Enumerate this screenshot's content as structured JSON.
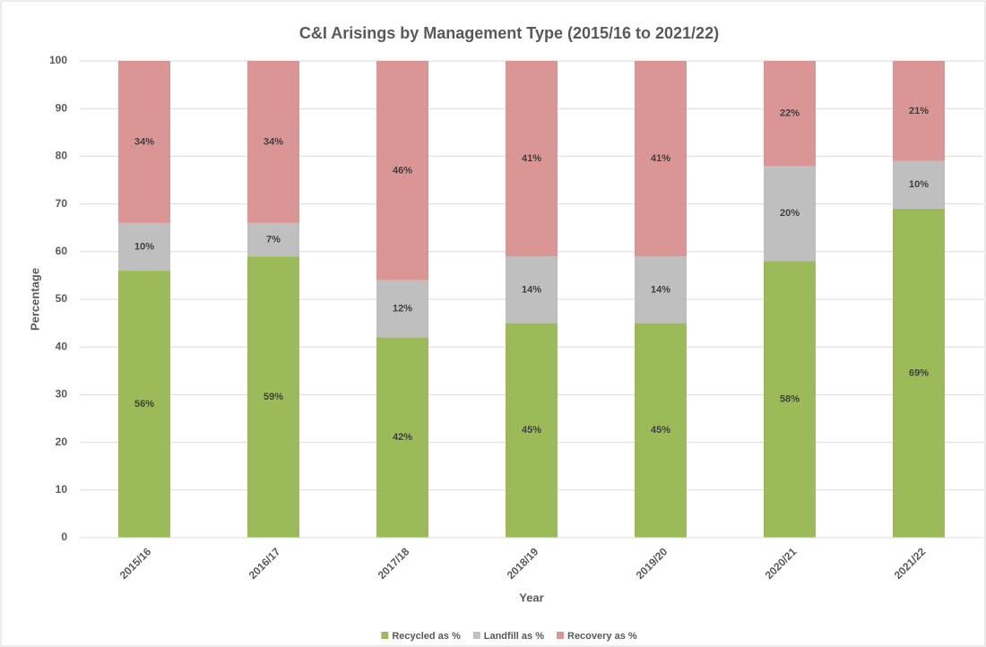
{
  "chart_data": {
    "type": "stacked_bar",
    "title": "C&I Arisings by Management Type (2015/16 to 2021/22)",
    "x_label": "Year",
    "y_label": "Percentage",
    "categories": [
      "2015/16",
      "2016/17",
      "2017/18",
      "2018/19",
      "2019/20",
      "2020/21",
      "2021/22"
    ],
    "series": [
      {
        "name": "Recycled as %",
        "color": "#9bbb59",
        "values": [
          56,
          59,
          42,
          45,
          45,
          58,
          69
        ],
        "value_labels": [
          "56%",
          "59%",
          "42%",
          "45%",
          "45%",
          "58%",
          "69%"
        ]
      },
      {
        "name": "Landfill as %",
        "color": "#bfbfbf",
        "values": [
          10,
          7,
          12,
          14,
          14,
          20,
          10
        ],
        "value_labels": [
          "10%",
          "7%",
          "12%",
          "14%",
          "14%",
          "20%",
          "10%"
        ]
      },
      {
        "name": "Recovery as %",
        "color": "#d99694",
        "values": [
          34,
          34,
          46,
          41,
          41,
          22,
          21
        ],
        "value_labels": [
          "34%",
          "34%",
          "46%",
          "41%",
          "41%",
          "22%",
          "21%"
        ]
      }
    ],
    "ylim": [
      0,
      100
    ],
    "yticks": [
      0,
      10,
      20,
      30,
      40,
      50,
      60,
      70,
      80,
      90,
      100
    ],
    "grid": true,
    "legend": "bottom"
  }
}
